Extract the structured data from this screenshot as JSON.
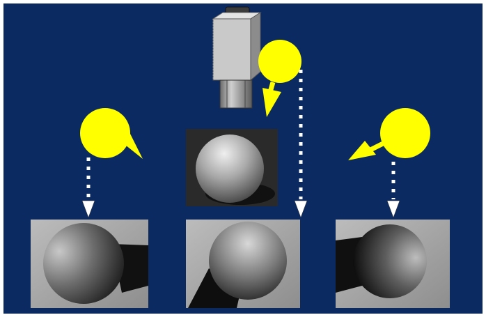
{
  "colors": {
    "background": "#0b2a62",
    "frame": "#ffffff",
    "light": "#ffff00",
    "arrow": "#ffffff",
    "camera_body": "#c8c8c8"
  },
  "icons": {
    "camera": "camera-icon",
    "light": "light-bulb-icon",
    "arrow": "dotted-down-arrow-icon"
  },
  "captured_images": [
    {
      "lighting": "left"
    },
    {
      "lighting": "top"
    },
    {
      "lighting": "right"
    }
  ]
}
